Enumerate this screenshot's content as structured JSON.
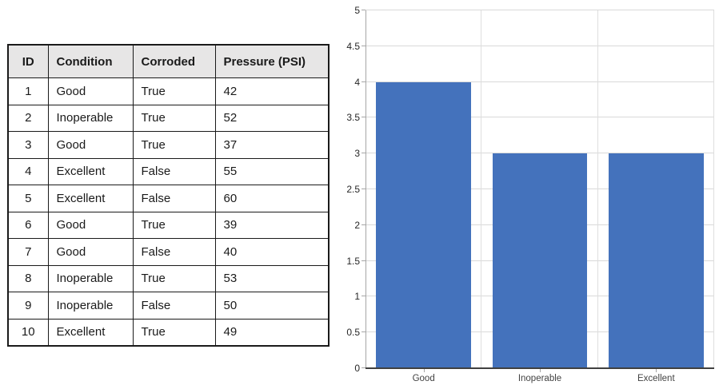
{
  "table": {
    "columns": [
      "ID",
      "Condition",
      "Corroded",
      "Pressure (PSI)"
    ],
    "rows": [
      [
        "1",
        "Good",
        "True",
        "42"
      ],
      [
        "2",
        "Inoperable",
        "True",
        "52"
      ],
      [
        "3",
        "Good",
        "True",
        "37"
      ],
      [
        "4",
        "Excellent",
        "False",
        "55"
      ],
      [
        "5",
        "Excellent",
        "False",
        "60"
      ],
      [
        "6",
        "Good",
        "True",
        "39"
      ],
      [
        "7",
        "Good",
        "False",
        "40"
      ],
      [
        "8",
        "Inoperable",
        "True",
        "53"
      ],
      [
        "9",
        "Inoperable",
        "False",
        "50"
      ],
      [
        "10",
        "Excellent",
        "True",
        "49"
      ]
    ],
    "header_bg": "#e7e6e6",
    "border_color": "#1a1a1a"
  },
  "chart_data": {
    "type": "bar",
    "categories": [
      "Good",
      "Inoperable",
      "Excellent"
    ],
    "values": [
      4,
      3,
      3
    ],
    "title": "",
    "xlabel": "",
    "ylabel": "",
    "ylim": [
      0,
      5
    ],
    "ytick_step": 0.5,
    "ytick_labels": [
      "0",
      "0.5",
      "1",
      "1.5",
      "2",
      "2.5",
      "3",
      "3.5",
      "4",
      "4.5",
      "5"
    ],
    "grid": true,
    "legend": false,
    "bar_color": "#4472bc",
    "gridline_color": "#d9d9d9",
    "vertical_gridline_color": "#dedede",
    "axis_color": "#a6a6a6",
    "baseline_color": "#404040",
    "bar_width_fraction": 0.815
  }
}
